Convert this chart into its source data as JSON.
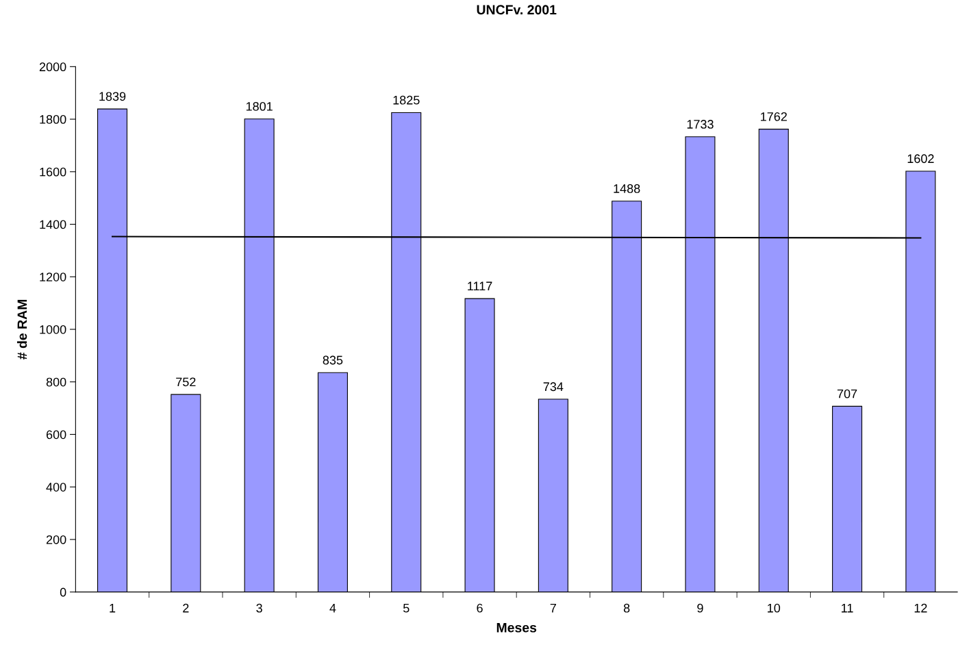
{
  "chart_data": {
    "type": "bar",
    "title": "UNCFv. 2001",
    "xlabel": "Meses",
    "ylabel": "# de RAM",
    "categories": [
      "1",
      "2",
      "3",
      "4",
      "5",
      "6",
      "7",
      "8",
      "9",
      "10",
      "11",
      "12"
    ],
    "series": [
      {
        "color": "#9999ff",
        "values": [
          1839,
          752,
          1801,
          835,
          1825,
          1117,
          734,
          1488,
          1733,
          1762,
          707,
          1602
        ],
        "data_labels": true
      },
      {
        "type": "line",
        "color": "#000000",
        "x": [
          "1",
          "12"
        ],
        "values": [
          1353,
          1348
        ]
      }
    ],
    "ylim": [
      0,
      2000
    ],
    "yticks": [
      0,
      200,
      400,
      600,
      800,
      1000,
      1200,
      1400,
      1600,
      1800,
      2000
    ],
    "grid": false,
    "legend": false
  }
}
